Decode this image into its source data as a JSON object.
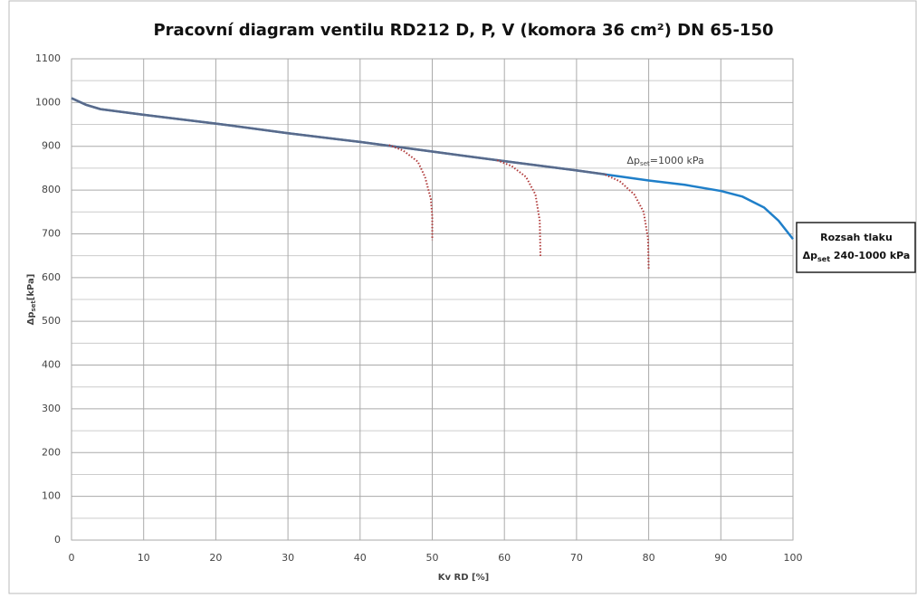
{
  "chart_data": {
    "type": "line",
    "title": "Pracovní diagram ventilu RD212 D, P, V (komora 36 cm²) DN 65-150",
    "x_label": "Kv RD [%]",
    "y_label": {
      "symbol": "Δp",
      "sub": "set",
      "unit": "[kPa]"
    },
    "annotation": {
      "symbol": "Δp",
      "sub": "set",
      "text": "=1000 kPa",
      "x": 82,
      "y": 858
    },
    "box": {
      "line1": "Rozsah tlaku",
      "symbol": "Δp",
      "sub": "set",
      "text": " 240-1000 kPa"
    },
    "xlim": [
      0,
      100
    ],
    "xticks": [
      0,
      10,
      20,
      30,
      40,
      50,
      60,
      70,
      80,
      90,
      100
    ],
    "ylim": [
      0,
      1100
    ],
    "yticks": [
      0,
      100,
      200,
      300,
      400,
      500,
      600,
      700,
      800,
      900,
      1000,
      1100
    ],
    "y_minor_ticks": [
      50,
      150,
      250,
      350,
      450,
      550,
      650,
      750,
      850,
      950,
      1050
    ],
    "grid": true,
    "series": [
      {
        "color": "#1f7fc9",
        "style": "solid",
        "x": [
          0,
          2,
          4,
          10,
          20,
          30,
          40,
          50,
          60,
          70,
          80,
          85,
          90,
          93,
          96,
          98,
          100
        ],
        "values": [
          1010,
          995,
          985,
          972,
          952,
          930,
          910,
          888,
          866,
          845,
          822,
          812,
          798,
          785,
          760,
          730,
          688
        ]
      },
      {
        "color": "#5a6a8a",
        "style": "solid",
        "x": [
          0,
          2,
          4,
          10,
          20,
          30,
          40,
          50,
          60,
          70,
          74
        ],
        "values": [
          1010,
          995,
          985,
          972,
          952,
          930,
          910,
          888,
          866,
          845,
          836
        ]
      },
      {
        "color": "#b03a3a",
        "style": "dotted",
        "x": [
          44,
          46,
          48,
          49,
          49.8,
          50,
          50
        ],
        "values": [
          903,
          890,
          865,
          830,
          780,
          740,
          686
        ]
      },
      {
        "color": "#b03a3a",
        "style": "dotted",
        "x": [
          59,
          61,
          63,
          64.3,
          64.9,
          65
        ],
        "values": [
          868,
          855,
          830,
          790,
          730,
          649
        ]
      },
      {
        "color": "#b03a3a",
        "style": "dotted",
        "x": [
          74,
          76,
          78,
          79.3,
          79.9,
          80
        ],
        "values": [
          835,
          820,
          790,
          750,
          690,
          620
        ]
      }
    ]
  }
}
